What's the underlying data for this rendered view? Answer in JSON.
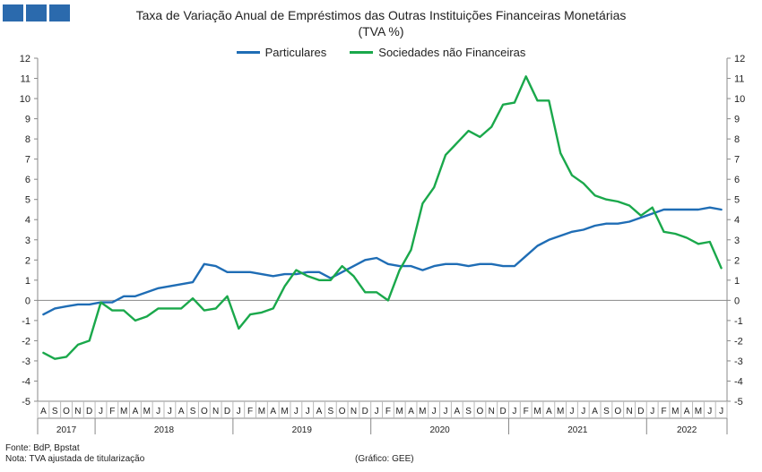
{
  "logo": {
    "color": "#2b6aad",
    "squares": 3
  },
  "chart_data": {
    "type": "line",
    "title": "Taxa de Variação Anual de Empréstimos das Outras Instituições Financeiras Monetárias",
    "subtitle": "(TVA %)",
    "ylim": [
      -5,
      12
    ],
    "yticks": [
      -5,
      -4,
      -3,
      -2,
      -1,
      0,
      1,
      2,
      3,
      4,
      5,
      6,
      7,
      8,
      9,
      10,
      11,
      12
    ],
    "grid": false,
    "legend_position": "top-center",
    "month_labels": [
      "A",
      "S",
      "O",
      "N",
      "D",
      "J",
      "F",
      "M",
      "A",
      "M",
      "J",
      "J",
      "A",
      "S",
      "O",
      "N",
      "D",
      "J",
      "F",
      "M",
      "A",
      "M",
      "J",
      "J",
      "A",
      "S",
      "O",
      "N",
      "D",
      "J",
      "F",
      "M",
      "A",
      "M",
      "J",
      "J",
      "A",
      "S",
      "O",
      "N",
      "D",
      "J",
      "F",
      "M",
      "A",
      "M",
      "J",
      "J",
      "A",
      "S",
      "O",
      "N",
      "D",
      "J",
      "F",
      "M",
      "A",
      "M",
      "J",
      "J"
    ],
    "year_labels": [
      {
        "label": "2017",
        "start": 0,
        "end": 4
      },
      {
        "label": "2018",
        "start": 5,
        "end": 16
      },
      {
        "label": "2019",
        "start": 17,
        "end": 28
      },
      {
        "label": "2020",
        "start": 29,
        "end": 40
      },
      {
        "label": "2021",
        "start": 41,
        "end": 52
      },
      {
        "label": "2022",
        "start": 53,
        "end": 59
      }
    ],
    "series": [
      {
        "name": "Particulares",
        "color": "#1f6db5",
        "values": [
          -0.7,
          -0.4,
          -0.3,
          -0.2,
          -0.2,
          -0.1,
          -0.1,
          0.2,
          0.2,
          0.4,
          0.6,
          0.7,
          0.8,
          0.9,
          1.8,
          1.7,
          1.4,
          1.4,
          1.4,
          1.3,
          1.2,
          1.3,
          1.3,
          1.4,
          1.4,
          1.1,
          1.4,
          1.7,
          2.0,
          2.1,
          1.8,
          1.7,
          1.7,
          1.5,
          1.7,
          1.8,
          1.8,
          1.7,
          1.8,
          1.8,
          1.7,
          1.7,
          2.2,
          2.7,
          3.0,
          3.2,
          3.4,
          3.5,
          3.7,
          3.8,
          3.8,
          3.9,
          4.1,
          4.3,
          4.5,
          4.5,
          4.5,
          4.5,
          4.6,
          4.5
        ]
      },
      {
        "name": "Sociedades não Financeiras",
        "color": "#1aa84b",
        "values": [
          -2.6,
          -2.9,
          -2.8,
          -2.2,
          -2.0,
          -0.1,
          -0.5,
          -0.5,
          -1.0,
          -0.8,
          -0.4,
          -0.4,
          -0.4,
          0.1,
          -0.5,
          -0.4,
          0.2,
          -1.4,
          -0.7,
          -0.6,
          -0.4,
          0.7,
          1.5,
          1.2,
          1.0,
          1.0,
          1.7,
          1.2,
          0.4,
          0.4,
          0.0,
          1.5,
          2.5,
          4.8,
          5.6,
          7.2,
          7.8,
          8.4,
          8.1,
          8.6,
          9.7,
          9.8,
          11.1,
          9.9,
          9.9,
          7.3,
          6.2,
          5.8,
          5.2,
          5.0,
          4.9,
          4.7,
          4.2,
          4.6,
          3.4,
          3.3,
          3.1,
          2.8,
          2.9,
          1.6
        ]
      }
    ]
  },
  "footer": {
    "source": "Fonte: BdP, Bpstat",
    "note": "Nota: TVA ajustada de titularização",
    "credit": "(Gráfico: GEE)"
  }
}
